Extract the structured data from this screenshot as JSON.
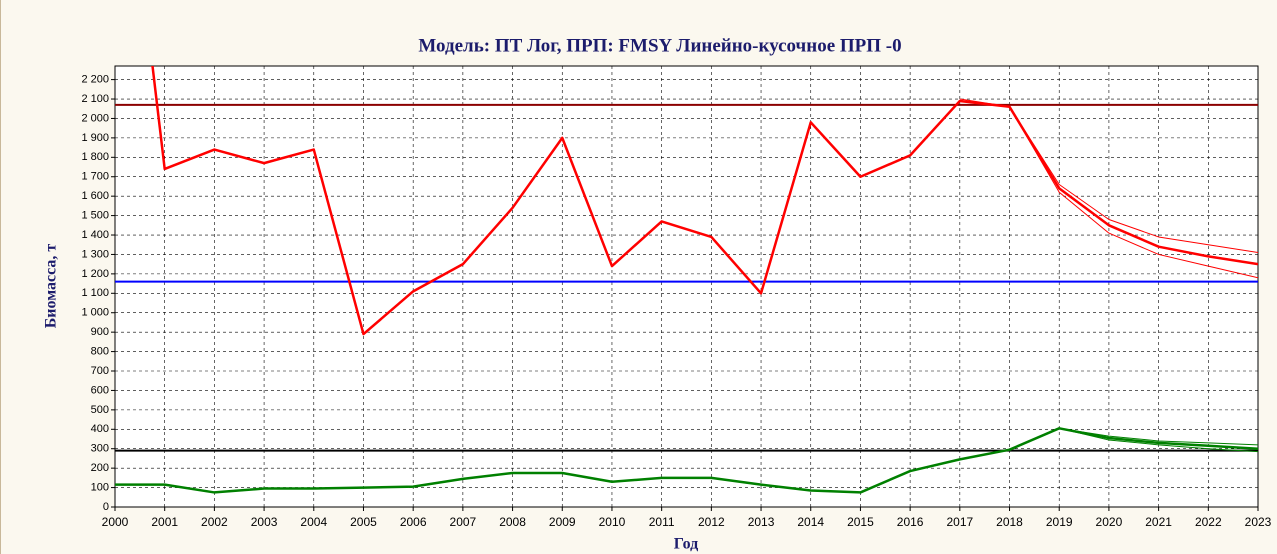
{
  "chart_data": {
    "type": "line",
    "title": "Модель: ПТ Лог,   ПРП: FMSY Линейно-кусочное ПРП -0",
    "x_label": "Год",
    "y_label": "Биомасса, т",
    "x": [
      2000,
      2001,
      2002,
      2003,
      2004,
      2005,
      2006,
      2007,
      2008,
      2009,
      2010,
      2011,
      2012,
      2013,
      2014,
      2015,
      2016,
      2017,
      2018,
      2019,
      2020,
      2021,
      2022,
      2023
    ],
    "xlim": [
      2000,
      2023
    ],
    "xticks": [
      2000,
      2001,
      2002,
      2003,
      2004,
      2005,
      2006,
      2007,
      2008,
      2009,
      2010,
      2011,
      2012,
      2013,
      2014,
      2015,
      2016,
      2017,
      2018,
      2019,
      2020,
      2021,
      2022,
      2023
    ],
    "ylim": [
      0,
      2270
    ],
    "yticks": [
      0,
      100,
      200,
      300,
      400,
      500,
      600,
      700,
      800,
      900,
      {
        "value": 1000,
        "label": "1 000"
      },
      {
        "value": 1100,
        "label": "1 100"
      },
      {
        "value": 1200,
        "label": "1 200"
      },
      {
        "value": 1300,
        "label": "1 300"
      },
      {
        "value": 1400,
        "label": "1 400"
      },
      {
        "value": 1500,
        "label": "1 500"
      },
      {
        "value": 1600,
        "label": "1 600"
      },
      {
        "value": 1700,
        "label": "1 700"
      },
      {
        "value": 1800,
        "label": "1 800"
      },
      {
        "value": 1900,
        "label": "1 900"
      },
      {
        "value": 2000,
        "label": "2 000"
      },
      {
        "value": 2100,
        "label": "2 100"
      },
      {
        "value": 2200,
        "label": "2 200"
      }
    ],
    "grid": true,
    "reference_lines": [
      {
        "value": 2070,
        "color": "#8b0000"
      },
      {
        "value": 1160,
        "color": "#0000ff"
      },
      {
        "value": 290,
        "color": "#000000"
      }
    ],
    "series": [
      {
        "color": "#ff0000",
        "line_width": 1,
        "values": [
          null,
          null,
          null,
          null,
          null,
          null,
          null,
          null,
          null,
          null,
          null,
          null,
          null,
          null,
          null,
          null,
          null,
          2100,
          2060,
          1660,
          1480,
          1390,
          1350,
          1310
        ]
      },
      {
        "color": "#ff0000",
        "line_width": 1,
        "values": [
          null,
          null,
          null,
          null,
          null,
          null,
          null,
          null,
          null,
          null,
          null,
          null,
          null,
          null,
          null,
          null,
          null,
          null,
          2060,
          1620,
          1410,
          1300,
          1240,
          1180
        ]
      },
      {
        "color": "#ff0000",
        "line_width": 2.5,
        "values": [
          3900,
          1740,
          1840,
          1770,
          1840,
          890,
          1110,
          1250,
          1540,
          1900,
          1240,
          1470,
          1390,
          1100,
          1980,
          1700,
          1810,
          2090,
          2060,
          1640,
          1450,
          1340,
          1290,
          1250
        ]
      },
      {
        "color": "#008000",
        "line_width": 1,
        "values": [
          null,
          null,
          null,
          null,
          null,
          null,
          null,
          null,
          null,
          null,
          null,
          null,
          null,
          null,
          null,
          null,
          null,
          null,
          null,
          405,
          365,
          340,
          330,
          320
        ]
      },
      {
        "color": "#008000",
        "line_width": 1,
        "values": [
          null,
          null,
          null,
          null,
          null,
          null,
          null,
          null,
          null,
          null,
          null,
          null,
          null,
          null,
          null,
          null,
          null,
          null,
          null,
          405,
          345,
          320,
          300,
          285
        ]
      },
      {
        "color": "#008000",
        "line_width": 2.5,
        "values": [
          115,
          115,
          75,
          95,
          95,
          100,
          105,
          145,
          175,
          175,
          130,
          150,
          150,
          115,
          85,
          75,
          185,
          245,
          295,
          405,
          355,
          330,
          315,
          300
        ]
      }
    ]
  }
}
